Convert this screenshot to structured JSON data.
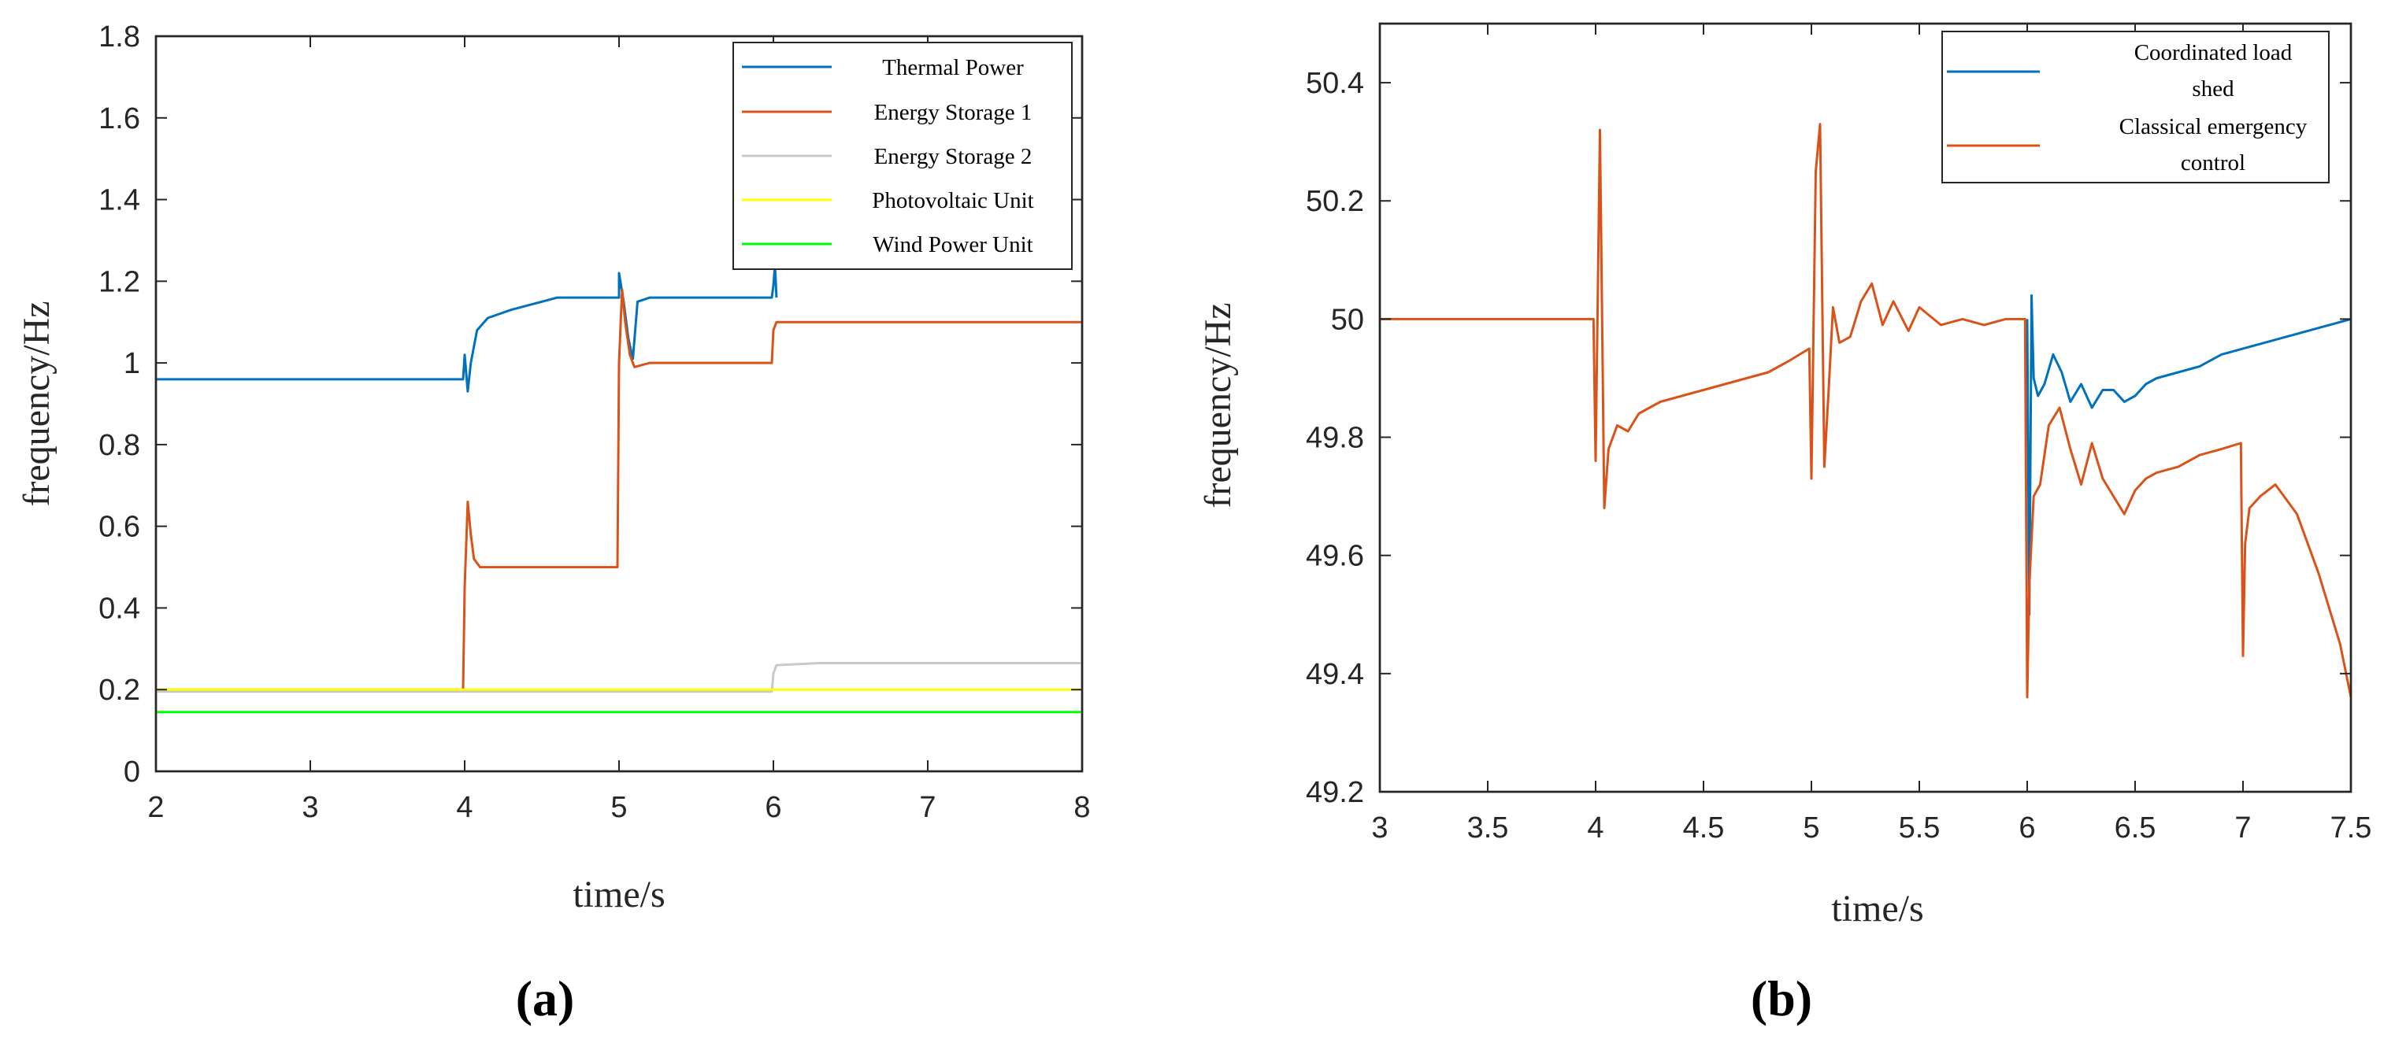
{
  "figure": {
    "panel_a_label": "(a)",
    "panel_b_label": "(b)"
  },
  "chart_data": [
    {
      "type": "line",
      "title": "",
      "xlabel": "time/s",
      "ylabel": "frequency/Hz",
      "xlim": [
        2,
        8
      ],
      "ylim": [
        0,
        1.8
      ],
      "xticks": [
        2,
        3,
        4,
        5,
        6,
        7,
        8
      ],
      "yticks": [
        0,
        0.2,
        0.4,
        0.6,
        0.8,
        1,
        1.2,
        1.4,
        1.6,
        1.8
      ],
      "xtick_labels": [
        "2",
        "3",
        "4",
        "5",
        "6",
        "7",
        "8"
      ],
      "ytick_labels": [
        "0",
        "0.2",
        "0.4",
        "0.6",
        "0.8",
        "1",
        "1.2",
        "1.4",
        "1.6",
        "1.8"
      ],
      "grid": false,
      "legend_position": "top-right",
      "series": [
        {
          "name": "Thermal Power",
          "color": "#0072BD",
          "x": [
            2,
            3,
            3.99,
            4.0,
            4.02,
            4.04,
            4.08,
            4.15,
            4.3,
            4.6,
            5.0,
            5.0,
            5.03,
            5.06,
            5.09,
            5.12,
            5.2,
            5.5,
            5.99,
            6.0,
            6.01,
            6.02
          ],
          "y": [
            0.96,
            0.96,
            0.96,
            1.02,
            0.93,
            1.0,
            1.08,
            1.11,
            1.13,
            1.16,
            1.16,
            1.22,
            1.15,
            1.06,
            1.01,
            1.15,
            1.16,
            1.16,
            1.16,
            1.19,
            1.24,
            1.16
          ]
        },
        {
          "name": "Energy Storage 1",
          "color": "#D95319",
          "x": [
            2,
            3.99,
            4.0,
            4.02,
            4.04,
            4.06,
            4.1,
            4.2,
            4.99,
            5.0,
            5.02,
            5.04,
            5.07,
            5.1,
            5.2,
            5.99,
            6.0,
            6.02,
            7,
            8
          ],
          "y": [
            0.2,
            0.2,
            0.45,
            0.66,
            0.58,
            0.52,
            0.5,
            0.5,
            0.5,
            1.0,
            1.18,
            1.1,
            1.02,
            0.99,
            1.0,
            1.0,
            1.08,
            1.1,
            1.1,
            1.1
          ]
        },
        {
          "name": "Energy Storage 2",
          "color": "#C8C8C8",
          "x": [
            2,
            5.99,
            6.0,
            6.02,
            6.3,
            8
          ],
          "y": [
            0.195,
            0.195,
            0.24,
            0.26,
            0.265,
            0.265
          ]
        },
        {
          "name": "Photovoltaic Unit",
          "color": "#FFFF00",
          "x": [
            2,
            8
          ],
          "y": [
            0.2,
            0.2
          ]
        },
        {
          "name": "Wind Power Unit",
          "color": "#00FF00",
          "x": [
            2,
            8
          ],
          "y": [
            0.145,
            0.145
          ]
        }
      ]
    },
    {
      "type": "line",
      "title": "",
      "xlabel": "time/s",
      "ylabel": "frequency/Hz",
      "xlim": [
        3,
        7.5
      ],
      "ylim": [
        49.2,
        50.5
      ],
      "xticks": [
        3,
        3.5,
        4,
        4.5,
        5,
        5.5,
        6,
        6.5,
        7,
        7.5
      ],
      "yticks": [
        49.2,
        49.4,
        49.6,
        49.8,
        50,
        50.2,
        50.4
      ],
      "xtick_labels": [
        "3",
        "3.5",
        "4",
        "4.5",
        "5",
        "5.5",
        "6",
        "6.5",
        "7",
        "7.5"
      ],
      "ytick_labels": [
        "49.2",
        "49.4",
        "49.6",
        "49.8",
        "50",
        "50.2",
        "50.4"
      ],
      "grid": false,
      "legend_position": "top-right",
      "series": [
        {
          "name": "Coordinated load shed",
          "color": "#0072BD",
          "x": [
            6.0,
            6.01,
            6.02,
            6.03,
            6.05,
            6.08,
            6.12,
            6.16,
            6.2,
            6.25,
            6.3,
            6.35,
            6.4,
            6.45,
            6.5,
            6.55,
            6.6,
            6.7,
            6.8,
            6.9,
            7.0,
            7.1,
            7.2,
            7.3,
            7.4,
            7.5
          ],
          "y": [
            50.0,
            49.5,
            50.04,
            49.9,
            49.87,
            49.89,
            49.94,
            49.91,
            49.86,
            49.89,
            49.85,
            49.88,
            49.88,
            49.86,
            49.87,
            49.89,
            49.9,
            49.91,
            49.92,
            49.94,
            49.95,
            49.96,
            49.97,
            49.98,
            49.99,
            50.0
          ]
        },
        {
          "name": "Classical emergency control",
          "color": "#D95319",
          "x": [
            3.0,
            3.5,
            3.99,
            4.0,
            4.02,
            4.04,
            4.06,
            4.1,
            4.15,
            4.2,
            4.3,
            4.4,
            4.5,
            4.6,
            4.7,
            4.8,
            4.9,
            4.99,
            5.0,
            5.02,
            5.04,
            5.06,
            5.08,
            5.1,
            5.13,
            5.18,
            5.23,
            5.28,
            5.33,
            5.38,
            5.45,
            5.5,
            5.6,
            5.7,
            5.8,
            5.9,
            5.99,
            6.0,
            6.01,
            6.03,
            6.06,
            6.1,
            6.15,
            6.2,
            6.25,
            6.3,
            6.35,
            6.4,
            6.45,
            6.5,
            6.55,
            6.6,
            6.7,
            6.8,
            6.9,
            6.99,
            7.0,
            7.01,
            7.03,
            7.08,
            7.15,
            7.25,
            7.35,
            7.45,
            7.5
          ],
          "y": [
            50.0,
            50.0,
            50.0,
            49.76,
            50.32,
            49.68,
            49.78,
            49.82,
            49.81,
            49.84,
            49.86,
            49.87,
            49.88,
            49.89,
            49.9,
            49.91,
            49.93,
            49.95,
            49.73,
            50.25,
            50.33,
            49.75,
            49.88,
            50.02,
            49.96,
            49.97,
            50.03,
            50.06,
            49.99,
            50.03,
            49.98,
            50.02,
            49.99,
            50.0,
            49.99,
            50.0,
            50.0,
            49.36,
            49.55,
            49.7,
            49.72,
            49.82,
            49.85,
            49.78,
            49.72,
            49.79,
            49.73,
            49.7,
            49.67,
            49.71,
            49.73,
            49.74,
            49.75,
            49.77,
            49.78,
            49.79,
            49.43,
            49.62,
            49.68,
            49.7,
            49.72,
            49.67,
            49.57,
            49.45,
            49.36
          ]
        }
      ]
    }
  ]
}
